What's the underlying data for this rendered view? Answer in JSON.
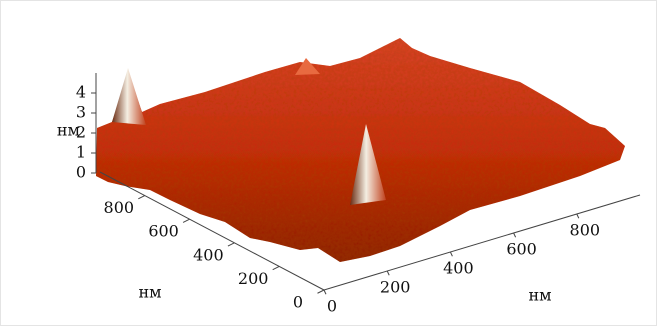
{
  "chart_data": {
    "type": "surface3d",
    "zlabel": "нм",
    "zlim": [
      0,
      5
    ],
    "zticks": [
      0,
      1,
      2,
      3,
      4
    ],
    "ylabel": "нм",
    "ylim": [
      0,
      1000
    ],
    "yticks": [
      0,
      200,
      400,
      600,
      800
    ],
    "xlabel": "нм",
    "xlim": [
      0,
      1000
    ],
    "xticks": [
      0,
      200,
      400,
      600,
      800
    ]
  }
}
